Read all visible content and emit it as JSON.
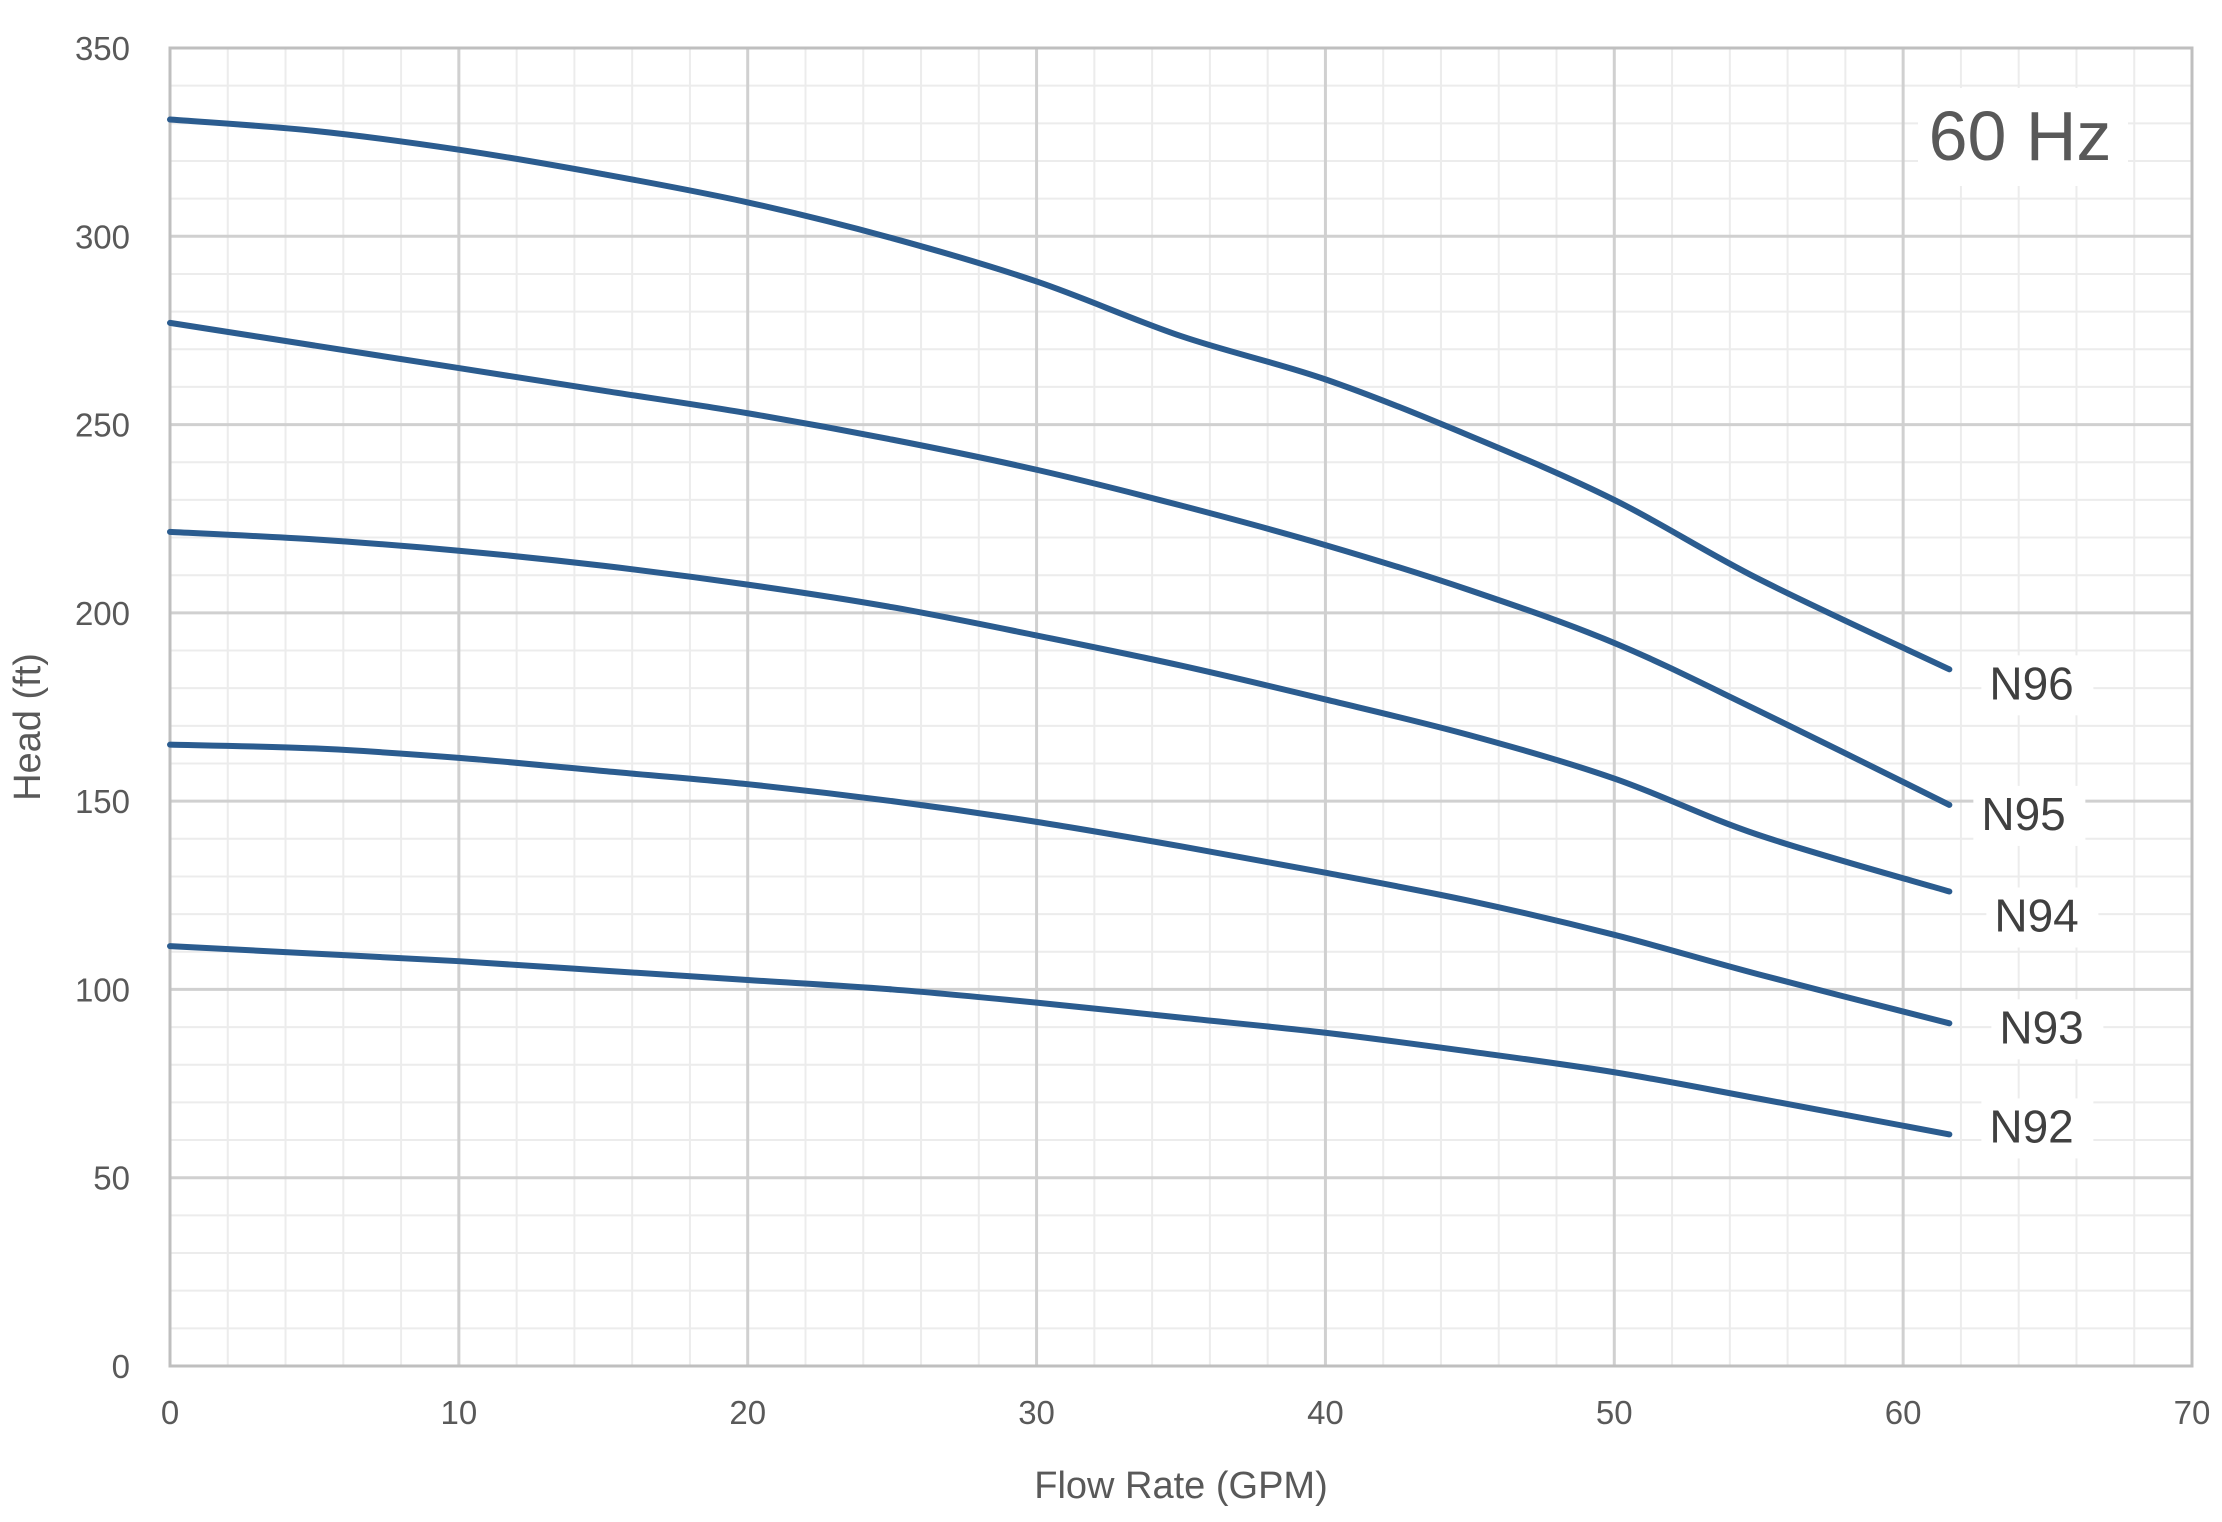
{
  "chart_data": {
    "type": "line",
    "title": "",
    "annotation": "60 Hz",
    "xlabel": "Flow Rate (GPM)",
    "ylabel": "Head (ft)",
    "xlim": [
      0,
      70
    ],
    "ylim": [
      0,
      350
    ],
    "x_ticks": [
      0,
      10,
      20,
      30,
      40,
      50,
      60,
      70
    ],
    "y_ticks": [
      0,
      50,
      100,
      150,
      200,
      250,
      300,
      350
    ],
    "x_minor_step": 2,
    "y_minor_step": 10,
    "grid": true,
    "line_color": "#2b5c8f",
    "legend": "none",
    "series": [
      {
        "name": "N96",
        "x": [
          0,
          5,
          10,
          15,
          20,
          25,
          30,
          35,
          40,
          45,
          50,
          55,
          61.6
        ],
        "values": [
          331,
          328,
          323,
          316.5,
          309,
          299.5,
          288,
          273.5,
          262,
          247,
          230,
          209,
          185
        ]
      },
      {
        "name": "N95",
        "x": [
          0,
          5,
          10,
          15,
          20,
          25,
          30,
          35,
          40,
          45,
          50,
          55,
          61.6
        ],
        "values": [
          277,
          271,
          265,
          259,
          253,
          246,
          238,
          228.5,
          218,
          206,
          192,
          174,
          149
        ]
      },
      {
        "name": "N94",
        "x": [
          0,
          5,
          10,
          15,
          20,
          25,
          30,
          35,
          40,
          45,
          50,
          55,
          61.6
        ],
        "values": [
          221.5,
          219.5,
          216.5,
          212.5,
          207.5,
          201.5,
          194,
          186,
          177,
          167.5,
          156,
          141,
          126
        ]
      },
      {
        "name": "N93",
        "x": [
          0,
          5,
          10,
          15,
          20,
          25,
          30,
          35,
          40,
          45,
          50,
          55,
          61.6
        ],
        "values": [
          165,
          164,
          161.5,
          158,
          154.5,
          150,
          144.5,
          138,
          131,
          123.5,
          114.5,
          104,
          91
        ]
      },
      {
        "name": "N92",
        "x": [
          0,
          5,
          10,
          15,
          20,
          25,
          30,
          35,
          40,
          45,
          50,
          55,
          61.6
        ],
        "values": [
          111.5,
          109.5,
          107.5,
          105,
          102.5,
          100,
          96.5,
          92.5,
          88.5,
          83.5,
          78,
          71,
          61.5
        ]
      }
    ]
  }
}
